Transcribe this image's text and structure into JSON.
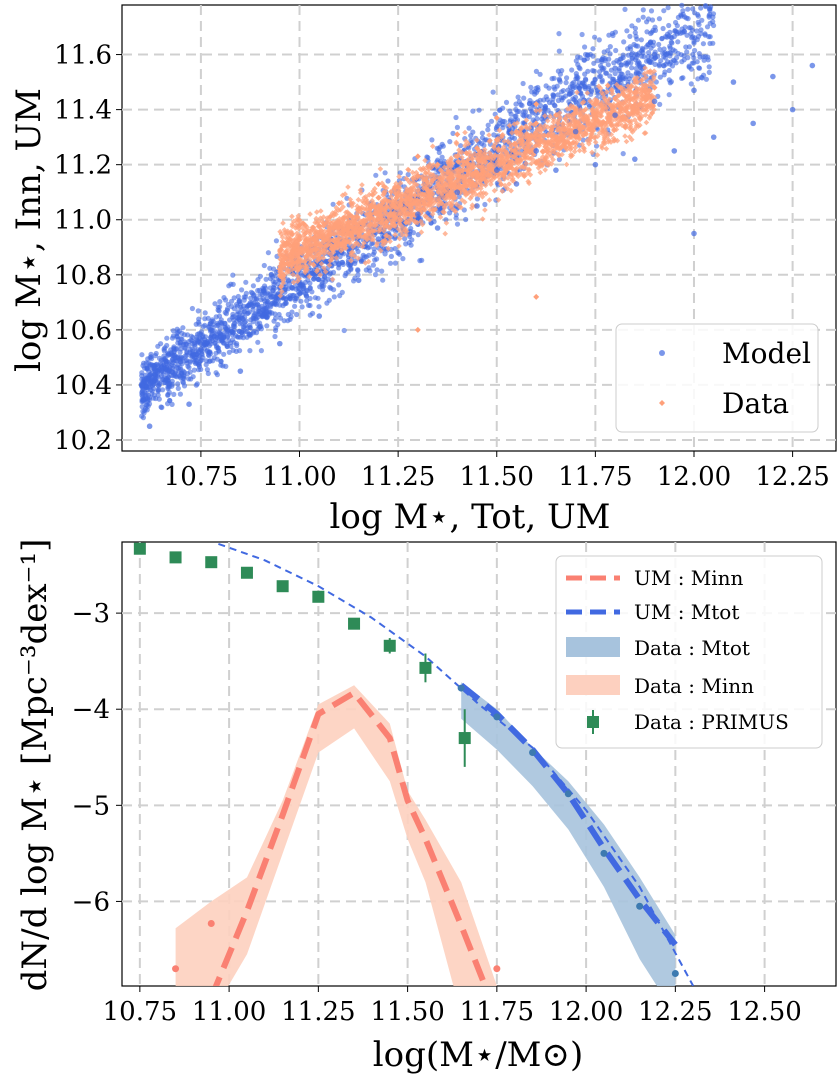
{
  "colors": {
    "model": "#4169e1",
    "data": "#ffa07a",
    "um_minn": "#fa8072",
    "um_mtot": "#4169e1",
    "data_mtot_band": "#a7c3dd",
    "data_minn_band": "#fdd0bf",
    "primus": "#2e8b57",
    "grid": "#d0d0d0"
  },
  "chart_data": [
    {
      "type": "scatter",
      "xlabel": "log M⋆, Tot, UM",
      "ylabel": "log M⋆, Inn, UM",
      "xlim": [
        10.55,
        12.36
      ],
      "ylim": [
        10.16,
        11.78
      ],
      "xticks": [
        "10.75",
        "11.00",
        "11.25",
        "11.50",
        "11.75",
        "12.00",
        "12.25"
      ],
      "yticks": [
        "10.2",
        "10.4",
        "10.6",
        "10.8",
        "11.0",
        "11.2",
        "11.4",
        "11.6"
      ],
      "grid": true,
      "legend_position": "bottom-right",
      "series": [
        {
          "name": "Model",
          "color": "#4169e1",
          "x": [
            10.6,
            10.65,
            10.7,
            10.75,
            10.8,
            10.9,
            11.0,
            11.1,
            11.2,
            11.3,
            11.4,
            11.5,
            11.6,
            11.7,
            11.8,
            11.9,
            12.0,
            12.1,
            12.2,
            12.3,
            10.62,
            10.72,
            10.85,
            10.95,
            11.05,
            11.15,
            11.25,
            11.35,
            11.45,
            11.55,
            11.65,
            11.75,
            11.85,
            11.95,
            12.05,
            12.15,
            12.25,
            11.8,
            11.9,
            12.0
          ],
          "y": [
            10.4,
            10.45,
            10.5,
            10.53,
            10.58,
            10.66,
            10.75,
            10.84,
            10.93,
            11.02,
            11.1,
            11.18,
            11.25,
            11.32,
            11.38,
            11.43,
            11.47,
            11.5,
            11.52,
            11.56,
            10.25,
            10.33,
            10.45,
            10.55,
            10.65,
            10.78,
            10.88,
            10.97,
            11.05,
            11.13,
            11.18,
            11.2,
            11.22,
            11.25,
            11.3,
            11.35,
            11.4,
            11.55,
            11.6,
            10.95
          ]
        },
        {
          "name": "Data",
          "color": "#ffa07a",
          "x": [
            10.95,
            11.0,
            11.05,
            11.1,
            11.15,
            11.2,
            11.25,
            11.3,
            11.35,
            11.4,
            11.45,
            11.5,
            11.55,
            11.6,
            11.65,
            11.7,
            11.75,
            11.8,
            11.85,
            11.9,
            11.0,
            11.1,
            11.2,
            11.3,
            11.4,
            11.5,
            11.6,
            11.7,
            11.3,
            11.6
          ],
          "y": [
            10.82,
            10.88,
            10.94,
            10.99,
            11.04,
            11.08,
            11.12,
            11.16,
            11.2,
            11.23,
            11.26,
            11.29,
            11.32,
            11.35,
            11.38,
            11.4,
            11.42,
            11.44,
            11.46,
            11.48,
            10.98,
            11.06,
            11.13,
            11.23,
            11.31,
            11.37,
            11.42,
            11.3,
            10.6,
            10.72
          ]
        }
      ]
    },
    {
      "type": "line",
      "xlabel": "log(M⋆/M⊙)",
      "ylabel": "dN/d log M⋆ [Mpc⁻³dex⁻¹]",
      "xlim": [
        10.7,
        12.7
      ],
      "ylim": [
        -6.88,
        -2.26
      ],
      "xticks": [
        "10.75",
        "11.00",
        "11.25",
        "11.50",
        "11.75",
        "12.00",
        "12.25",
        "12.50"
      ],
      "yticks": [
        "−3",
        "−4",
        "−5",
        "−6"
      ],
      "grid": true,
      "legend_position": "top-right",
      "legend": [
        "UM : Minn",
        "UM : Mtot",
        "Data : Mtot",
        "Data : Minn",
        "Data : PRIMUS"
      ],
      "series": [
        {
          "name": "UM : Minn",
          "style": "dashed-thick",
          "color": "#fa8072",
          "x": [
            10.95,
            11.05,
            11.15,
            11.25,
            11.35,
            11.45,
            11.5,
            11.55,
            11.65,
            11.73
          ],
          "y": [
            -7.0,
            -6.1,
            -5.1,
            -4.05,
            -3.83,
            -4.3,
            -4.95,
            -5.35,
            -6.25,
            -7.0
          ]
        },
        {
          "name": "UM : Mtot",
          "style": "dashed-thick",
          "color": "#4169e1",
          "x": [
            11.65,
            11.75,
            11.85,
            11.95,
            12.05,
            12.15,
            12.25
          ],
          "y": [
            -3.75,
            -4.05,
            -4.42,
            -4.88,
            -5.45,
            -5.98,
            -6.45
          ]
        },
        {
          "name": "UM : Mtot (extension)",
          "style": "dashed-thin",
          "color": "#4169e1",
          "x": [
            10.97,
            11.1,
            11.25,
            11.4,
            11.55,
            11.7,
            11.85,
            12.0,
            12.15,
            12.3
          ],
          "y": [
            -2.28,
            -2.45,
            -2.72,
            -3.05,
            -3.45,
            -3.95,
            -4.4,
            -5.05,
            -5.85,
            -6.88
          ]
        },
        {
          "name": "Data : Mtot",
          "style": "band",
          "color": "#a7c3dd",
          "x": [
            11.65,
            11.75,
            11.85,
            11.95,
            12.05,
            12.15,
            12.25
          ],
          "lower": [
            -3.8,
            -4.12,
            -4.5,
            -4.95,
            -5.55,
            -6.3,
            -6.88
          ],
          "upper": [
            -3.72,
            -4.0,
            -4.4,
            -4.75,
            -5.2,
            -5.75,
            -6.35
          ],
          "points_y": [
            -3.78,
            -4.08,
            -4.45,
            -4.88,
            -5.5,
            -6.05,
            -6.75
          ]
        },
        {
          "name": "Data : Minn",
          "style": "band",
          "color": "#fdd0bf",
          "x": [
            10.85,
            10.95,
            11.05,
            11.15,
            11.25,
            11.35,
            11.45,
            11.5,
            11.55,
            11.65,
            11.75
          ],
          "lower": [
            -6.88,
            -6.88,
            -6.25,
            -5.2,
            -4.15,
            -3.9,
            -4.45,
            -5.05,
            -5.5,
            -6.88,
            -6.88
          ],
          "upper": [
            -6.28,
            -6.0,
            -5.75,
            -4.95,
            -3.95,
            -3.75,
            -4.15,
            -4.85,
            -5.15,
            -5.8,
            -6.88
          ],
          "points_x": [
            10.85,
            10.95,
            11.75
          ],
          "points_y": [
            -6.7,
            -6.23,
            -6.7
          ]
        },
        {
          "name": "Data : PRIMUS",
          "style": "errorbar",
          "color": "#2e8b57",
          "x": [
            10.75,
            10.85,
            10.95,
            11.05,
            11.15,
            11.25,
            11.35,
            11.45,
            11.55,
            11.66
          ],
          "y": [
            -2.33,
            -2.42,
            -2.47,
            -2.58,
            -2.72,
            -2.83,
            -3.11,
            -3.34,
            -3.57,
            -4.3
          ],
          "err": [
            0.02,
            0.02,
            0.02,
            0.03,
            0.03,
            0.04,
            0.05,
            0.08,
            0.15,
            0.3
          ]
        }
      ]
    }
  ]
}
